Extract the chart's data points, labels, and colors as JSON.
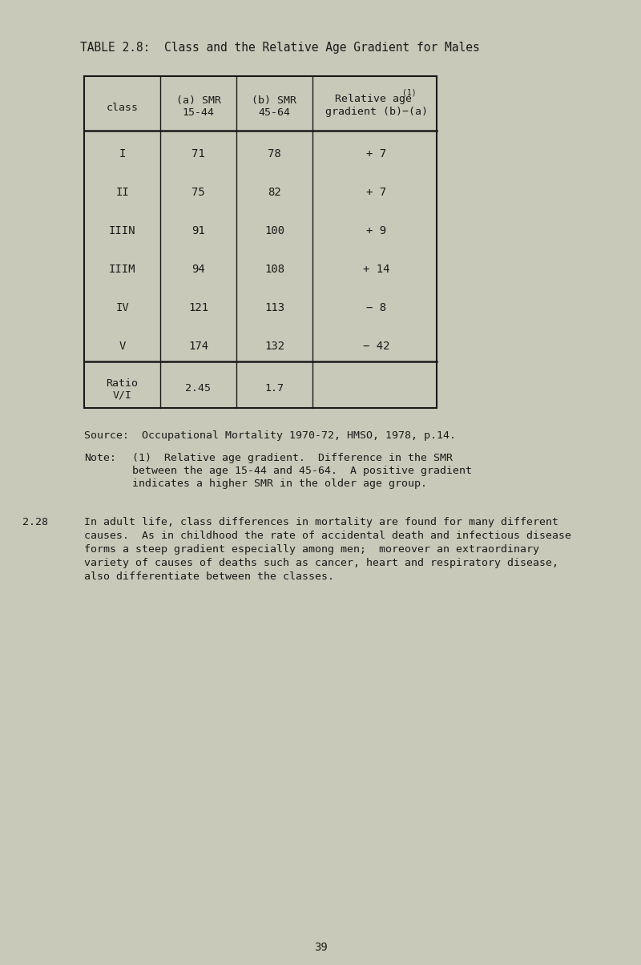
{
  "title": "TABLE 2.8:  Class and the Relative Age Gradient for Males",
  "bg_color": "#c9c9b9",
  "text_color": "#1a1a1a",
  "table": {
    "col_headers": [
      "class",
      "(a) SMR\n15-44",
      "(b) SMR\n45-64"
    ],
    "col4_line1": "Relative age",
    "col4_sup": "(1)",
    "col4_line2": "gradient (b)−(a)",
    "rows": [
      [
        "I",
        "71",
        "78",
        "+ 7"
      ],
      [
        "II",
        "75",
        "82",
        "+ 7"
      ],
      [
        "IIIN",
        "91",
        "100",
        "+ 9"
      ],
      [
        "IIIM",
        "94",
        "108",
        "+ 14"
      ],
      [
        "IV",
        "121",
        "113",
        "− 8"
      ],
      [
        "V",
        "174",
        "132",
        "− 42"
      ]
    ],
    "footer": [
      "Ratio\nV/I",
      "2.45",
      "1.7",
      ""
    ]
  },
  "source_text": "Source:  Occupational Mortality 1970-72, HMSO, 1978, p.14.",
  "note_label": "Note:",
  "note_indent": 60,
  "note_lines": [
    "(1)  Relative age gradient.  Difference in the SMR",
    "between the age 15-44 and 45-64.  A positive gradient",
    "indicates a higher SMR in the older age group."
  ],
  "para_num": "2.28",
  "para_indent": 105,
  "para_lines": [
    "In adult life, class differences in mortality are found for many different",
    "causes.  As in childhood the rate of accidental death and infectious disease",
    "forms a steep gradient especially among men;  moreover an extraordinary",
    "variety of causes of deaths such as cancer, heart and respiratory disease,",
    "also differentiate between the classes."
  ],
  "page_number": "39",
  "font_size_title": 10.5,
  "font_size_header": 9.5,
  "font_size_cell": 10,
  "font_size_footer": 9.5,
  "font_size_note": 9.5,
  "font_size_para": 9.5,
  "font_size_page": 10
}
